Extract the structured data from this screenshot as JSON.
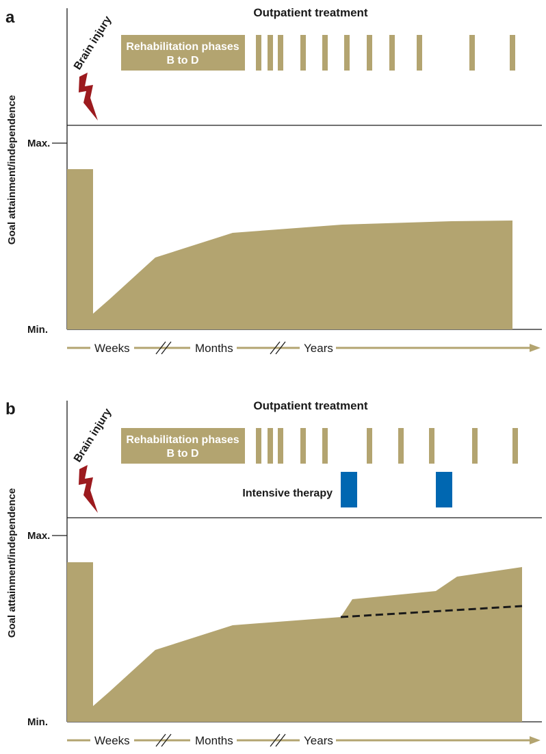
{
  "colors": {
    "fill": "#b3a470",
    "arrow": "#b3a470",
    "bolt": "#9c1a1e",
    "intensive": "#0067b1",
    "line": "#1a1a1a"
  },
  "labels": {
    "outpatient": "Outpatient treatment",
    "brain_injury": "Brain injury",
    "rehab_line1": "Rehabilitation phases",
    "rehab_line2": "B to D",
    "y_axis": "Goal attainment/independence",
    "max": "Max.",
    "min": "Min.",
    "weeks": "Weeks",
    "months": "Months",
    "years": "Years",
    "intensive": "Intensive therapy"
  },
  "panels": [
    {
      "id": "a",
      "letter": "a",
      "outpatient_sessions": 11,
      "intensive_sessions": 0,
      "description": "standard outcome curve"
    },
    {
      "id": "b",
      "letter": "b",
      "outpatient_sessions": 10,
      "intensive_sessions": 2,
      "description": "curve with intensive therapy boosts; dashed line = expected course without it"
    }
  ]
}
